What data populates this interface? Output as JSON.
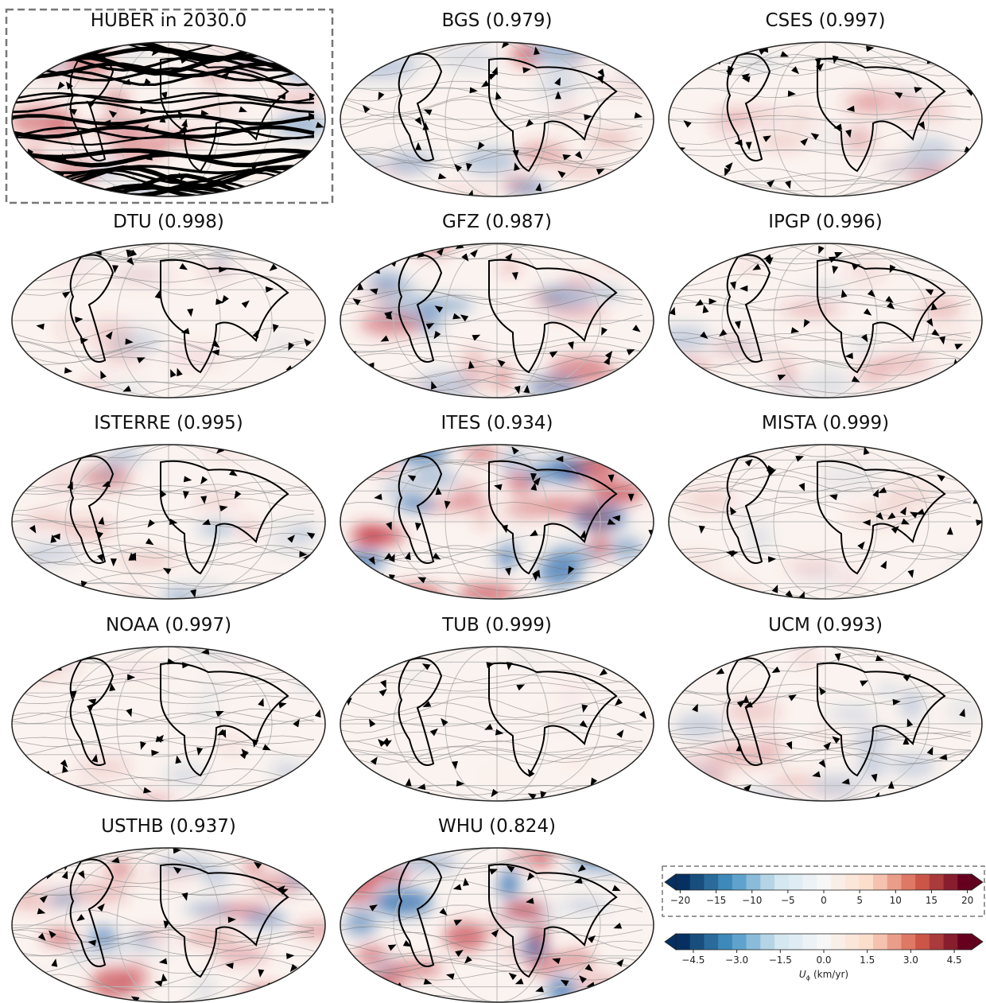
{
  "panels": [
    {
      "title": "HUBER in 2030.0"
    },
    {
      "title": "BGS (0.979)"
    },
    {
      "title": "CSES (0.997)"
    },
    {
      "title": "DTU (0.998)"
    },
    {
      "title": "GFZ (0.987)"
    },
    {
      "title": "IPGP (0.996)"
    },
    {
      "title": "ISTERRE (0.995)"
    },
    {
      "title": "ITES (0.934)"
    },
    {
      "title": "MISTA (0.999)"
    },
    {
      "title": "NOAA (0.997)"
    },
    {
      "title": "TUB (0.999)"
    },
    {
      "title": "UCM (0.993)"
    },
    {
      "title": "USTHB (0.937)"
    },
    {
      "title": "WHU (0.824)"
    }
  ],
  "colorbars": [
    {
      "vlim": [
        -20.6,
        20.6
      ],
      "ticks": [
        {
          "value": -20,
          "label": "−20"
        },
        {
          "value": -15,
          "label": "−15"
        },
        {
          "value": -10,
          "label": "−10"
        },
        {
          "value": -5,
          "label": "−5"
        },
        0,
        5,
        10,
        15,
        20
      ]
    },
    {
      "vlim": [
        -5.1,
        5.1
      ],
      "ticks": [
        {
          "value": -4.5,
          "label": "−4.5"
        },
        {
          "value": -3,
          "label": "−3.0"
        },
        {
          "value": -1.5,
          "label": "−1.5"
        },
        {
          "value": 0,
          "label": "0.0"
        },
        1.5,
        {
          "value": 3,
          "label": "3.0"
        },
        4.5
      ],
      "label": {
        "symbol": "U",
        "subscript": "ϕ",
        "unit": "(km/yr)"
      }
    }
  ]
}
